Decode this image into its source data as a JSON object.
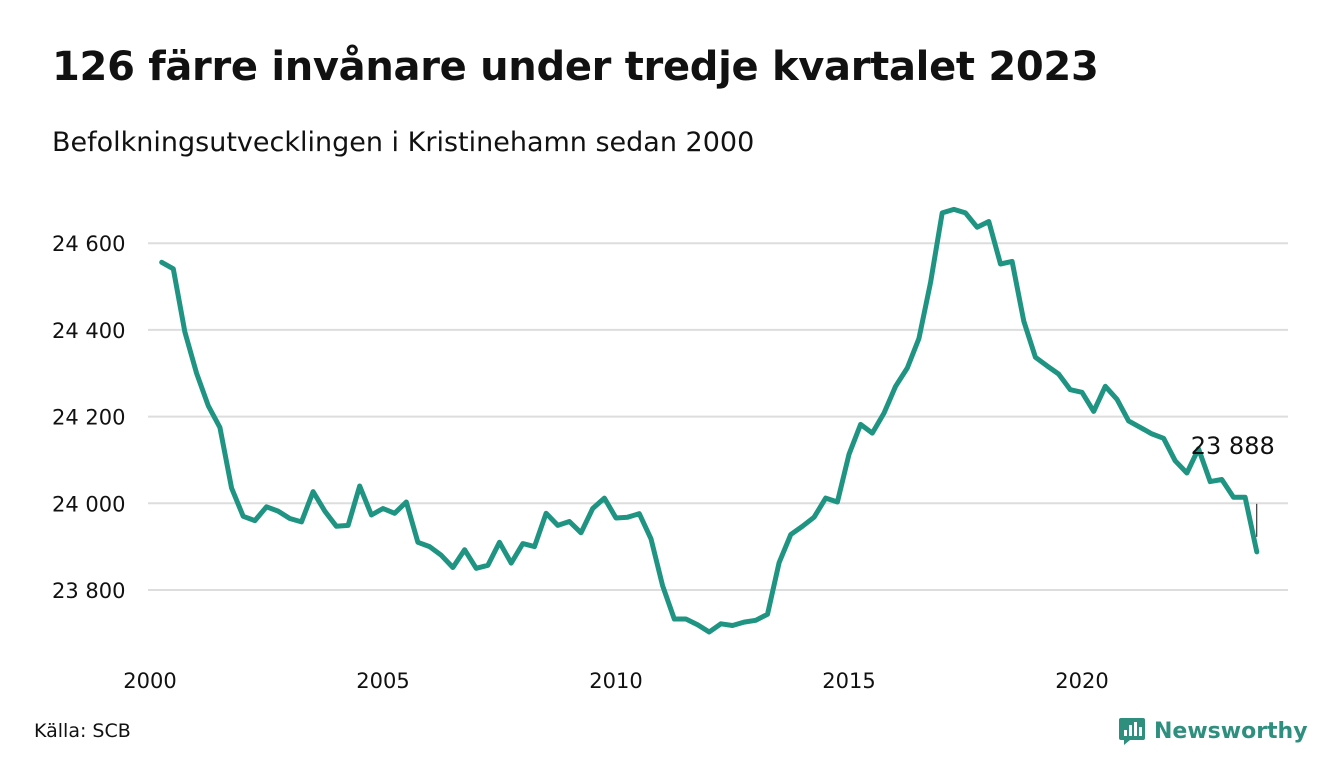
{
  "brand": {
    "name": "Newsworthy",
    "color": "#2f8f7e"
  },
  "source": "Källa: SCB",
  "chart_data": {
    "type": "line",
    "title": "126 färre invånare under tredje kvartalet 2023",
    "subtitle": "Befolkningsutvecklingen i Kristinehamn sedan 2000",
    "xlabel": "",
    "ylabel": "",
    "x_ticks": [
      "2000",
      "2005",
      "2010",
      "2015",
      "2020"
    ],
    "y_ticks": [
      {
        "value": 23800,
        "label": "23 800"
      },
      {
        "value": 24000,
        "label": "24 000"
      },
      {
        "value": 24200,
        "label": "24 200"
      },
      {
        "value": 24400,
        "label": "24 400"
      },
      {
        "value": 24600,
        "label": "24 600"
      }
    ],
    "ylim": [
      23680,
      24720
    ],
    "xlim": [
      2000,
      2024.5
    ],
    "grid": true,
    "line_color": "#1f9482",
    "series": [
      {
        "x": [
          2000.25,
          2000.5,
          2000.75,
          2001,
          2001.25,
          2001.5,
          2001.75,
          2002,
          2002.25,
          2002.5,
          2002.75,
          2003,
          2003.25,
          2003.5,
          2003.75,
          2004,
          2004.25,
          2004.5,
          2004.75,
          2005,
          2005.25,
          2005.5,
          2005.75,
          2006,
          2006.25,
          2006.5,
          2006.75,
          2007,
          2007.25,
          2007.5,
          2007.75,
          2008,
          2008.25,
          2008.5,
          2008.75,
          2009,
          2009.25,
          2009.5,
          2009.75,
          2010,
          2010.25,
          2010.5,
          2010.75,
          2011,
          2011.25,
          2011.5,
          2011.75,
          2012,
          2012.25,
          2012.5,
          2012.75,
          2013,
          2013.25,
          2013.5,
          2013.75,
          2014,
          2014.25,
          2014.5,
          2014.75,
          2015,
          2015.25,
          2015.5,
          2015.75,
          2016,
          2016.25,
          2016.5,
          2016.75,
          2017,
          2017.25,
          2017.5,
          2017.75,
          2018,
          2018.25,
          2018.5,
          2018.75,
          2019,
          2019.25,
          2019.5,
          2019.75,
          2020,
          2020.25,
          2020.5,
          2020.75,
          2021,
          2021.25,
          2021.5,
          2021.75,
          2022,
          2022.25,
          2022.5,
          2022.75,
          2023,
          2023.25,
          2023.5,
          2023.75
        ],
        "values": [
          24556,
          24541,
          24395,
          24300,
          24225,
          24175,
          24035,
          23970,
          23960,
          23992,
          23982,
          23965,
          23957,
          24027,
          23982,
          23947,
          23949,
          24040,
          23973,
          23988,
          23977,
          24003,
          23910,
          23900,
          23880,
          23852,
          23893,
          23850,
          23857,
          23910,
          23862,
          23907,
          23900,
          23977,
          23949,
          23958,
          23932,
          23988,
          24012,
          23966,
          23968,
          23976,
          23918,
          23810,
          23733,
          23733,
          23720,
          23703,
          23722,
          23718,
          23726,
          23730,
          23744,
          23863,
          23928,
          23947,
          23968,
          24012,
          24003,
          24113,
          24182,
          24162,
          24208,
          24270,
          24312,
          24380,
          24510,
          24670,
          24678,
          24670,
          24637,
          24650,
          24552,
          24558,
          24420,
          24337,
          24317,
          24298,
          24262,
          24256,
          24212,
          24270,
          24240,
          24190,
          24175,
          24160,
          24150,
          24098,
          24070,
          24126,
          24050,
          24055,
          24014,
          24014,
          23888
        ]
      }
    ],
    "annotation": {
      "value": 23888,
      "label": "23 888"
    }
  }
}
